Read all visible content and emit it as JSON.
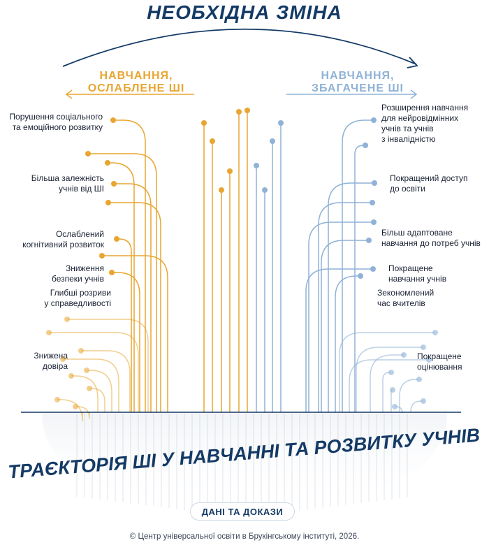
{
  "title": "НЕОБХІДНА ЗМІНА",
  "left_heading": "НАВЧАННЯ,\nОСЛАБЛЕНЕ ШІ",
  "right_heading": "НАВЧАННЯ,\nЗБАГАЧЕНЕ ШІ",
  "bottom_title": "ТРАЄКТОРІЯ ШІ У НАВЧАННІ ТА РОЗВИТКУ УЧНІВ",
  "evidence_button": "ДАНІ ТА ДОКАЗИ",
  "footer": "© Центр універсальної освіти в Брукінгському інституті, 2026.",
  "colors": {
    "navy": "#143a66",
    "orange": "#e8a631",
    "blue": "#8fb2d6"
  },
  "left_labels": [
    "Порушення соціального\nта емоційного розвитку",
    "Більша залежність\nучнів від ШІ",
    "Ослаблений\nкогнітивний розвиток",
    "Зниження\nбезпеки учнів",
    "Глибші розриви\nу справедливості",
    "Знижена\nдовіра"
  ],
  "right_labels": [
    "Розширення навчання\nдля нейровідмінних\nучнів та учнів\nз інвалідністю",
    "Покращений доступ\nдо освіти",
    "Більш адаптоване\nнавчання до потреб учнів",
    "Покращене\nнавчання учнів",
    "Зекономлений\nчас вчителів",
    "Покращене\nоцінювання"
  ]
}
